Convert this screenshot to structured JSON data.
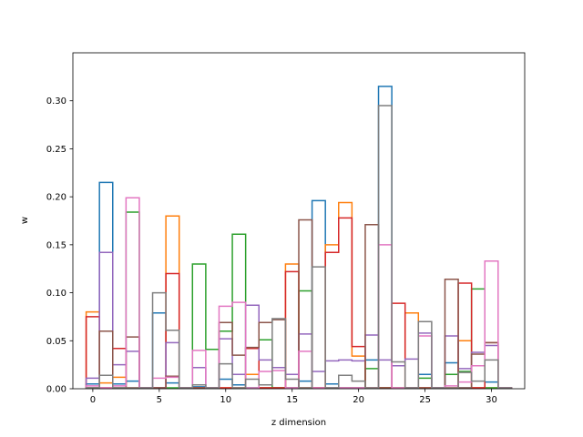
{
  "chart_data": {
    "type": "step-histogram",
    "title": "",
    "xlabel": "z dimension",
    "ylabel": "w",
    "xlim": [
      -1.5,
      32.5
    ],
    "ylim": [
      0,
      0.35
    ],
    "xticks": [
      0,
      5,
      10,
      15,
      20,
      25,
      30
    ],
    "yticks": [
      0.0,
      0.05,
      0.1,
      0.15,
      0.2,
      0.25,
      0.3
    ],
    "grid": false,
    "bins": 32,
    "series": [
      {
        "color": "#1f77b4",
        "values": [
          0.005,
          0.215,
          0.005,
          0.008,
          0.001,
          0.079,
          0.006,
          0.001,
          0.002,
          0.001,
          0.01,
          0.004,
          0.001,
          0.001,
          0.001,
          0.001,
          0.008,
          0.196,
          0.005,
          0.001,
          0.001,
          0.03,
          0.315,
          0.001,
          0.001,
          0.015,
          0.001,
          0.027,
          0.001,
          0.001,
          0.007,
          0.001
        ]
      },
      {
        "color": "#ff7f0e",
        "values": [
          0.08,
          0.006,
          0.012,
          0.001,
          0.001,
          0.001,
          0.18,
          0.001,
          0.001,
          0.001,
          0.001,
          0.001,
          0.015,
          0.001,
          0.001,
          0.13,
          0.001,
          0.001,
          0.15,
          0.194,
          0.034,
          0.001,
          0.001,
          0.001,
          0.079,
          0.001,
          0.001,
          0.001,
          0.05,
          0.001,
          0.001,
          0.001
        ]
      },
      {
        "color": "#2ca02c",
        "values": [
          0.001,
          0.001,
          0.001,
          0.184,
          0.001,
          0.001,
          0.001,
          0.001,
          0.13,
          0.041,
          0.06,
          0.161,
          0.001,
          0.051,
          0.001,
          0.001,
          0.102,
          0.001,
          0.001,
          0.001,
          0.001,
          0.021,
          0.001,
          0.001,
          0.001,
          0.011,
          0.001,
          0.015,
          0.018,
          0.104,
          0.001,
          0.001
        ]
      },
      {
        "color": "#d62728",
        "values": [
          0.075,
          0.001,
          0.042,
          0.001,
          0.001,
          0.001,
          0.12,
          0.001,
          0.001,
          0.001,
          0.001,
          0.001,
          0.042,
          0.001,
          0.001,
          0.122,
          0.001,
          0.001,
          0.142,
          0.178,
          0.044,
          0.001,
          0.001,
          0.089,
          0.001,
          0.001,
          0.001,
          0.001,
          0.11,
          0.001,
          0.048,
          0.001
        ]
      },
      {
        "color": "#9467bd",
        "values": [
          0.011,
          0.142,
          0.025,
          0.039,
          0.001,
          0.001,
          0.048,
          0.001,
          0.022,
          0.001,
          0.052,
          0.015,
          0.087,
          0.03,
          0.022,
          0.015,
          0.057,
          0.018,
          0.029,
          0.03,
          0.029,
          0.056,
          0.03,
          0.024,
          0.031,
          0.058,
          0.001,
          0.055,
          0.021,
          0.038,
          0.045,
          0.001
        ]
      },
      {
        "color": "#8c564b",
        "values": [
          0.001,
          0.06,
          0.001,
          0.054,
          0.001,
          0.001,
          0.013,
          0.001,
          0.001,
          0.001,
          0.069,
          0.035,
          0.043,
          0.069,
          0.072,
          0.001,
          0.176,
          0.001,
          0.001,
          0.001,
          0.001,
          0.171,
          0.001,
          0.001,
          0.001,
          0.001,
          0.001,
          0.114,
          0.001,
          0.036,
          0.048,
          0.001
        ]
      },
      {
        "color": "#e377c2",
        "values": [
          0.003,
          0.001,
          0.003,
          0.199,
          0.001,
          0.011,
          0.012,
          0.001,
          0.04,
          0.001,
          0.086,
          0.09,
          0.001,
          0.018,
          0.019,
          0.001,
          0.039,
          0.001,
          0.001,
          0.001,
          0.001,
          0.001,
          0.15,
          0.001,
          0.001,
          0.055,
          0.001,
          0.003,
          0.007,
          0.024,
          0.133,
          0.001
        ]
      },
      {
        "color": "#7f7f7f",
        "values": [
          0.001,
          0.014,
          0.001,
          0.001,
          0.001,
          0.1,
          0.061,
          0.001,
          0.004,
          0.001,
          0.026,
          0.001,
          0.01,
          0.004,
          0.073,
          0.01,
          0.001,
          0.127,
          0.001,
          0.014,
          0.008,
          0.001,
          0.295,
          0.028,
          0.001,
          0.07,
          0.001,
          0.001,
          0.017,
          0.008,
          0.03,
          0.001
        ]
      }
    ]
  }
}
